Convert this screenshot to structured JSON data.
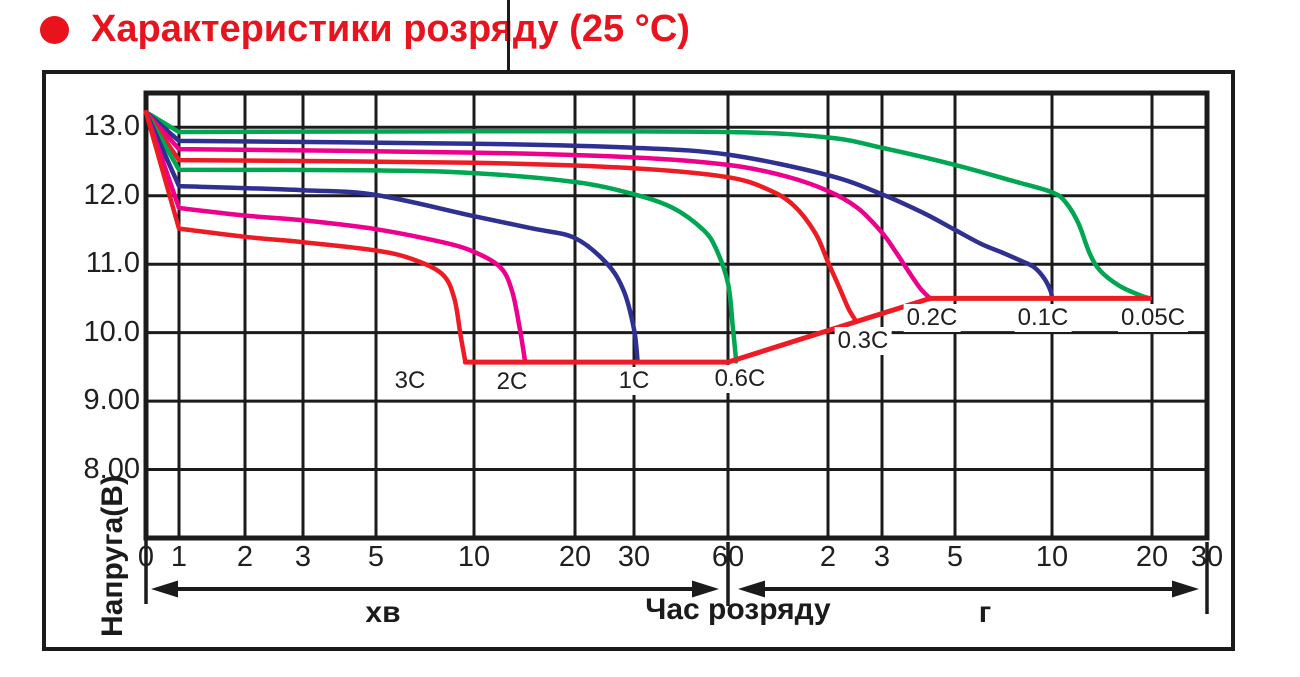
{
  "page": {
    "title": "Характеристики розряду (25 °C)",
    "title_color": "#e8131d",
    "bullet_color": "#e8131d"
  },
  "chart_data": {
    "type": "line",
    "title": "Характеристики розряду (25 °C)",
    "ylabel": "Напруга(В)",
    "xlabel": "Час розряду",
    "grid": true,
    "y_axis": {
      "range": [
        7.0,
        13.5
      ],
      "ticks": [
        {
          "value": 13,
          "label": "13.0"
        },
        {
          "value": 12,
          "label": "12.0"
        },
        {
          "value": 11,
          "label": "11.0"
        },
        {
          "value": 10,
          "label": "10.0"
        },
        {
          "value": 9,
          "label": "9.00"
        },
        {
          "value": 8,
          "label": "8.00"
        }
      ]
    },
    "x_axis": {
      "scale": "log-time",
      "ticks": [
        {
          "t_min": 0,
          "label": "0"
        },
        {
          "t_min": 1,
          "label": "1"
        },
        {
          "t_min": 2,
          "label": "2"
        },
        {
          "t_min": 3,
          "label": "3"
        },
        {
          "t_min": 5,
          "label": "5"
        },
        {
          "t_min": 10,
          "label": "10"
        },
        {
          "t_min": 20,
          "label": "20"
        },
        {
          "t_min": 30,
          "label": "30"
        },
        {
          "t_min": 60,
          "label": "60"
        },
        {
          "t_min": 120,
          "label": "2"
        },
        {
          "t_min": 180,
          "label": "3"
        },
        {
          "t_min": 300,
          "label": "5"
        },
        {
          "t_min": 600,
          "label": "10"
        },
        {
          "t_min": 1200,
          "label": "20"
        },
        {
          "t_min": 1800,
          "label": "30"
        }
      ],
      "sections": [
        {
          "label": "хв",
          "from_min": 0,
          "to_min": 60
        },
        {
          "label": "г",
          "from_min": 60,
          "to_min": 1800
        }
      ]
    },
    "series": [
      {
        "name": "0.05C",
        "color": "#00a651",
        "points": [
          [
            0,
            13.22
          ],
          [
            1,
            12.93
          ],
          [
            10,
            12.94
          ],
          [
            60,
            12.93
          ],
          [
            120,
            12.85
          ],
          [
            180,
            12.7
          ],
          [
            300,
            12.45
          ],
          [
            450,
            12.22
          ],
          [
            600,
            12.05
          ],
          [
            660,
            11.9
          ],
          [
            720,
            11.6
          ],
          [
            780,
            11.15
          ],
          [
            840,
            10.9
          ],
          [
            960,
            10.68
          ],
          [
            1100,
            10.55
          ],
          [
            1180,
            10.5
          ]
        ]
      },
      {
        "name": "0.1C",
        "color": "#2e3192",
        "points": [
          [
            0,
            13.22
          ],
          [
            1,
            12.8
          ],
          [
            10,
            12.76
          ],
          [
            30,
            12.7
          ],
          [
            60,
            12.6
          ],
          [
            120,
            12.3
          ],
          [
            180,
            12.02
          ],
          [
            240,
            11.75
          ],
          [
            300,
            11.5
          ],
          [
            360,
            11.3
          ],
          [
            420,
            11.17
          ],
          [
            480,
            11.05
          ],
          [
            530,
            10.95
          ],
          [
            570,
            10.78
          ],
          [
            595,
            10.6
          ],
          [
            600,
            10.5
          ]
        ]
      },
      {
        "name": "0.2C",
        "color": "#ec008c",
        "points": [
          [
            0,
            13.22
          ],
          [
            1,
            12.68
          ],
          [
            10,
            12.63
          ],
          [
            30,
            12.56
          ],
          [
            60,
            12.45
          ],
          [
            90,
            12.28
          ],
          [
            120,
            12.07
          ],
          [
            150,
            11.82
          ],
          [
            180,
            11.46
          ],
          [
            200,
            11.15
          ],
          [
            215,
            10.92
          ],
          [
            235,
            10.65
          ],
          [
            252,
            10.5
          ]
        ]
      },
      {
        "name": "0.3C",
        "color": "#ed1c24",
        "points": [
          [
            0,
            13.22
          ],
          [
            1,
            12.52
          ],
          [
            10,
            12.48
          ],
          [
            30,
            12.4
          ],
          [
            60,
            12.27
          ],
          [
            80,
            12.08
          ],
          [
            95,
            11.85
          ],
          [
            110,
            11.45
          ],
          [
            120,
            11.03
          ],
          [
            130,
            10.68
          ],
          [
            140,
            10.35
          ],
          [
            148,
            10.17
          ]
        ]
      },
      {
        "name": "0.6C",
        "color": "#00a651",
        "points": [
          [
            0,
            13.22
          ],
          [
            1,
            12.38
          ],
          [
            5,
            12.37
          ],
          [
            10,
            12.33
          ],
          [
            20,
            12.2
          ],
          [
            30,
            12.02
          ],
          [
            40,
            11.82
          ],
          [
            50,
            11.5
          ],
          [
            55,
            11.22
          ],
          [
            60,
            10.72
          ],
          [
            62,
            10.1
          ],
          [
            63.5,
            9.58
          ]
        ]
      },
      {
        "name": "1C",
        "color": "#2e3192",
        "points": [
          [
            0,
            13.22
          ],
          [
            1,
            12.14
          ],
          [
            3,
            12.08
          ],
          [
            5,
            12.01
          ],
          [
            10,
            11.7
          ],
          [
            15,
            11.52
          ],
          [
            20,
            11.38
          ],
          [
            25,
            11.0
          ],
          [
            28,
            10.6
          ],
          [
            30,
            10.05
          ],
          [
            30.8,
            9.58
          ]
        ]
      },
      {
        "name": "2C",
        "color": "#ec008c",
        "points": [
          [
            0,
            13.22
          ],
          [
            1,
            11.82
          ],
          [
            2,
            11.71
          ],
          [
            3,
            11.64
          ],
          [
            5,
            11.51
          ],
          [
            8,
            11.32
          ],
          [
            10,
            11.18
          ],
          [
            12,
            10.95
          ],
          [
            13,
            10.6
          ],
          [
            13.7,
            10.05
          ],
          [
            14.2,
            9.58
          ]
        ]
      },
      {
        "name": "3C",
        "color": "#ed1c24",
        "points": [
          [
            0,
            13.22
          ],
          [
            1,
            11.52
          ],
          [
            2,
            11.4
          ],
          [
            3,
            11.32
          ],
          [
            5,
            11.2
          ],
          [
            6.5,
            11.07
          ],
          [
            8,
            10.85
          ],
          [
            8.7,
            10.5
          ],
          [
            9.1,
            9.95
          ],
          [
            9.4,
            9.58
          ]
        ]
      }
    ],
    "cutoff_line": {
      "color": "#ed1c24",
      "voltage_high_rate": 9.57,
      "voltage_low_rate": 10.5,
      "points": [
        [
          9.4,
          9.57
        ],
        [
          60,
          9.57
        ],
        [
          252,
          10.5
        ],
        [
          1180,
          10.5
        ]
      ]
    }
  }
}
